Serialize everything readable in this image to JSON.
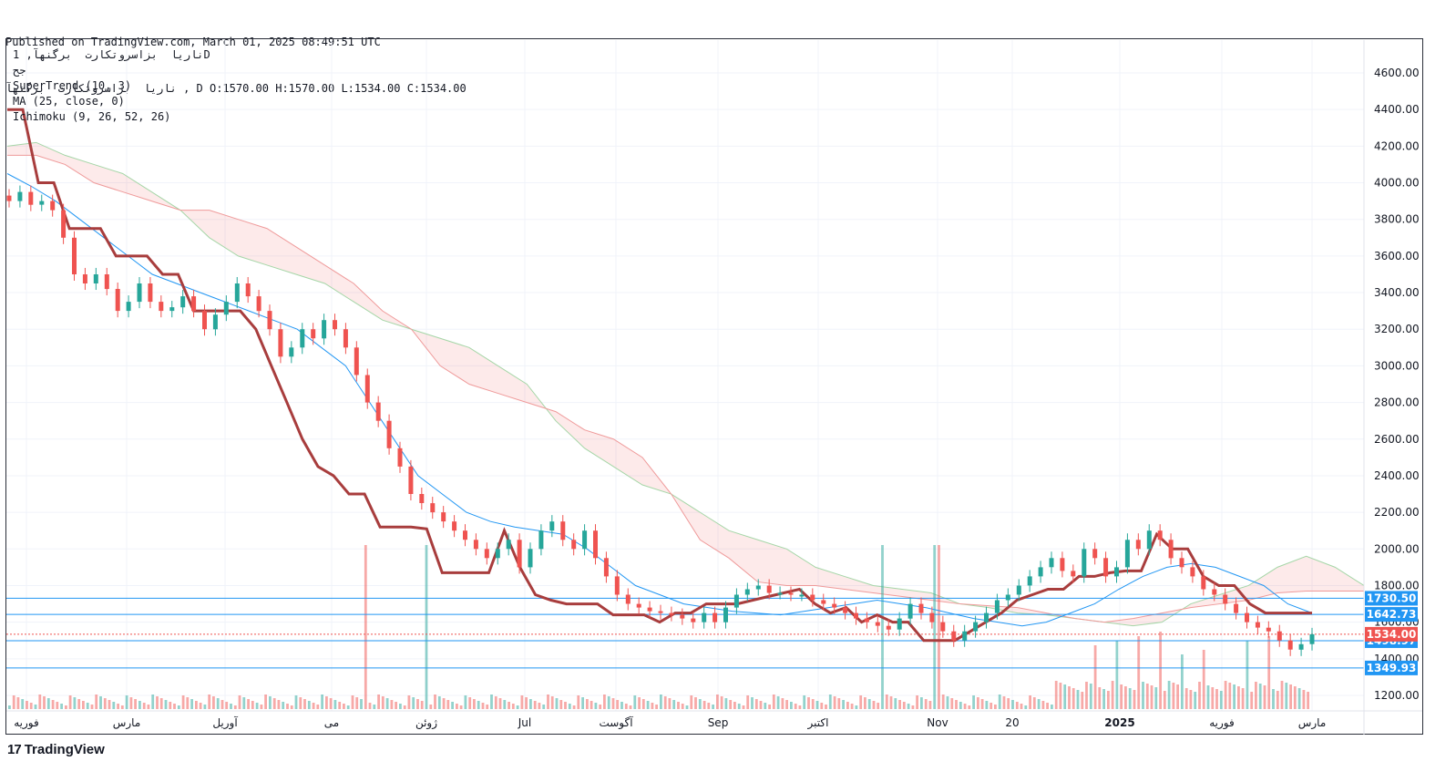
{
  "header": {
    "published": "Published on TradingView.com, March 01, 2025 08:49:51 UTC",
    "symbol_line": "ناریا  بزاسروتکارت  برگنهآ , D O:1570.00 H:1570.00 L:1534.00 C:1534.00"
  },
  "legend": {
    "title": "ناریا  بزاسروتکارت  برگنهآ, 1D",
    "subtitle": "جح",
    "ind1": "SuperTrend (10, 3)",
    "ind2": "MA (25, close, 0)",
    "ind3": "Ichimoku (9, 26, 52, 26)"
  },
  "footer": {
    "logo_text": "TradingView"
  },
  "colors": {
    "up": "#26a69a",
    "down": "#ef5350",
    "st_down": "#a83d3d",
    "st_up": "#4caf50",
    "ma": "#2196f3",
    "hline": "#2196f3",
    "price_tag": "#ef5350"
  },
  "chart_data": {
    "type": "candlestick",
    "timeframe": "1D",
    "y_axis": {
      "ticks": [
        1200,
        1400,
        1600,
        1800,
        2000,
        2200,
        2400,
        2600,
        2800,
        3000,
        3200,
        3400,
        3600,
        3800,
        4000,
        4200,
        4400,
        4600
      ],
      "tick_labels": [
        "1200.00",
        "1400.00",
        "1600.00",
        "1800.00",
        "2000.00",
        "2200.00",
        "2400.00",
        "2600.00",
        "2800.00",
        "3000.00",
        "3200.00",
        "3400.00",
        "3600.00",
        "3800.00",
        "4000.00",
        "4200.00",
        "4400.00",
        "4600.00"
      ]
    },
    "x_axis": {
      "labels": [
        "فوریه",
        "مارس",
        "آوریل",
        "می",
        "ژوئن",
        "Jul",
        "آگوست",
        "Sep",
        "اکتبر",
        "Nov",
        "20",
        "2025",
        "فوریه",
        "مارس"
      ]
    },
    "horizontal_lines": [
      {
        "value": 1730.5,
        "label": "1730.50"
      },
      {
        "value": 1642.73,
        "label": "1642.73"
      },
      {
        "value": 1498.97,
        "label": "1498.97"
      },
      {
        "value": 1349.93,
        "label": "1349.93"
      }
    ],
    "last_price": {
      "value": 1534.0,
      "label": "1534.00"
    },
    "series_points": {
      "close": [
        3900,
        3950,
        3880,
        3900,
        3850,
        3700,
        3500,
        3450,
        3500,
        3420,
        3300,
        3350,
        3450,
        3350,
        3300,
        3320,
        3380,
        3300,
        3200,
        3280,
        3350,
        3450,
        3380,
        3300,
        3200,
        3050,
        3100,
        3200,
        3150,
        3250,
        3200,
        3100,
        2950,
        2800,
        2700,
        2550,
        2450,
        2300,
        2250,
        2200,
        2150,
        2100,
        2050,
        2000,
        1950,
        2000,
        2050,
        1900,
        2000,
        2100,
        2150,
        2050,
        2000,
        2100,
        1950,
        1850,
        1750,
        1700,
        1680,
        1660,
        1650,
        1640,
        1620,
        1600,
        1650,
        1600,
        1680,
        1750,
        1780,
        1800,
        1760,
        1760,
        1750,
        1750,
        1720,
        1700,
        1680,
        1650,
        1620,
        1600,
        1580,
        1560,
        1620,
        1700,
        1650,
        1600,
        1550,
        1500,
        1550,
        1600,
        1650,
        1720,
        1750,
        1800,
        1850,
        1900,
        1950,
        1880,
        1850,
        2000,
        1950,
        1850,
        1900,
        2050,
        2000,
        2100,
        2050,
        1950,
        1900,
        1850,
        1780,
        1750,
        1700,
        1650,
        1600,
        1570,
        1550,
        1500,
        1450,
        1480,
        1534
      ],
      "supertrend": [
        4400,
        4400,
        4000,
        4000,
        3750,
        3750,
        3750,
        3600,
        3600,
        3600,
        3500,
        3500,
        3300,
        3300,
        3300,
        3300,
        3200,
        3000,
        2800,
        2600,
        2450,
        2400,
        2300,
        2300,
        2120,
        2120,
        2120,
        2110,
        1870,
        1870,
        1870,
        1870,
        2100,
        1900,
        1750,
        1720,
        1700,
        1700,
        1700,
        1640,
        1640,
        1640,
        1600,
        1650,
        1650,
        1700,
        1700,
        1700,
        1720,
        1740,
        1760,
        1780,
        1700,
        1650,
        1680,
        1600,
        1640,
        1600,
        1600,
        1500,
        1500,
        1500,
        1550,
        1600,
        1650,
        1720,
        1750,
        1780,
        1780,
        1850,
        1850,
        1870,
        1880,
        1880,
        2080,
        2000,
        2000,
        1850,
        1800,
        1800,
        1700,
        1650,
        1650,
        1650,
        1650
      ],
      "ma25": [
        4050,
        3980,
        3900,
        3800,
        3700,
        3600,
        3500,
        3450,
        3400,
        3350,
        3300,
        3250,
        3200,
        3100,
        3000,
        2800,
        2600,
        2400,
        2300,
        2200,
        2150,
        2120,
        2100,
        2080,
        2000,
        1900,
        1800,
        1750,
        1700,
        1680,
        1660,
        1650,
        1640,
        1660,
        1680,
        1700,
        1720,
        1700,
        1680,
        1650,
        1620,
        1600,
        1580,
        1600,
        1650,
        1700,
        1780,
        1850,
        1900,
        1920,
        1900,
        1850,
        1800,
        1700,
        1650
      ]
    },
    "volume_note": "volume histogram at bottom"
  }
}
